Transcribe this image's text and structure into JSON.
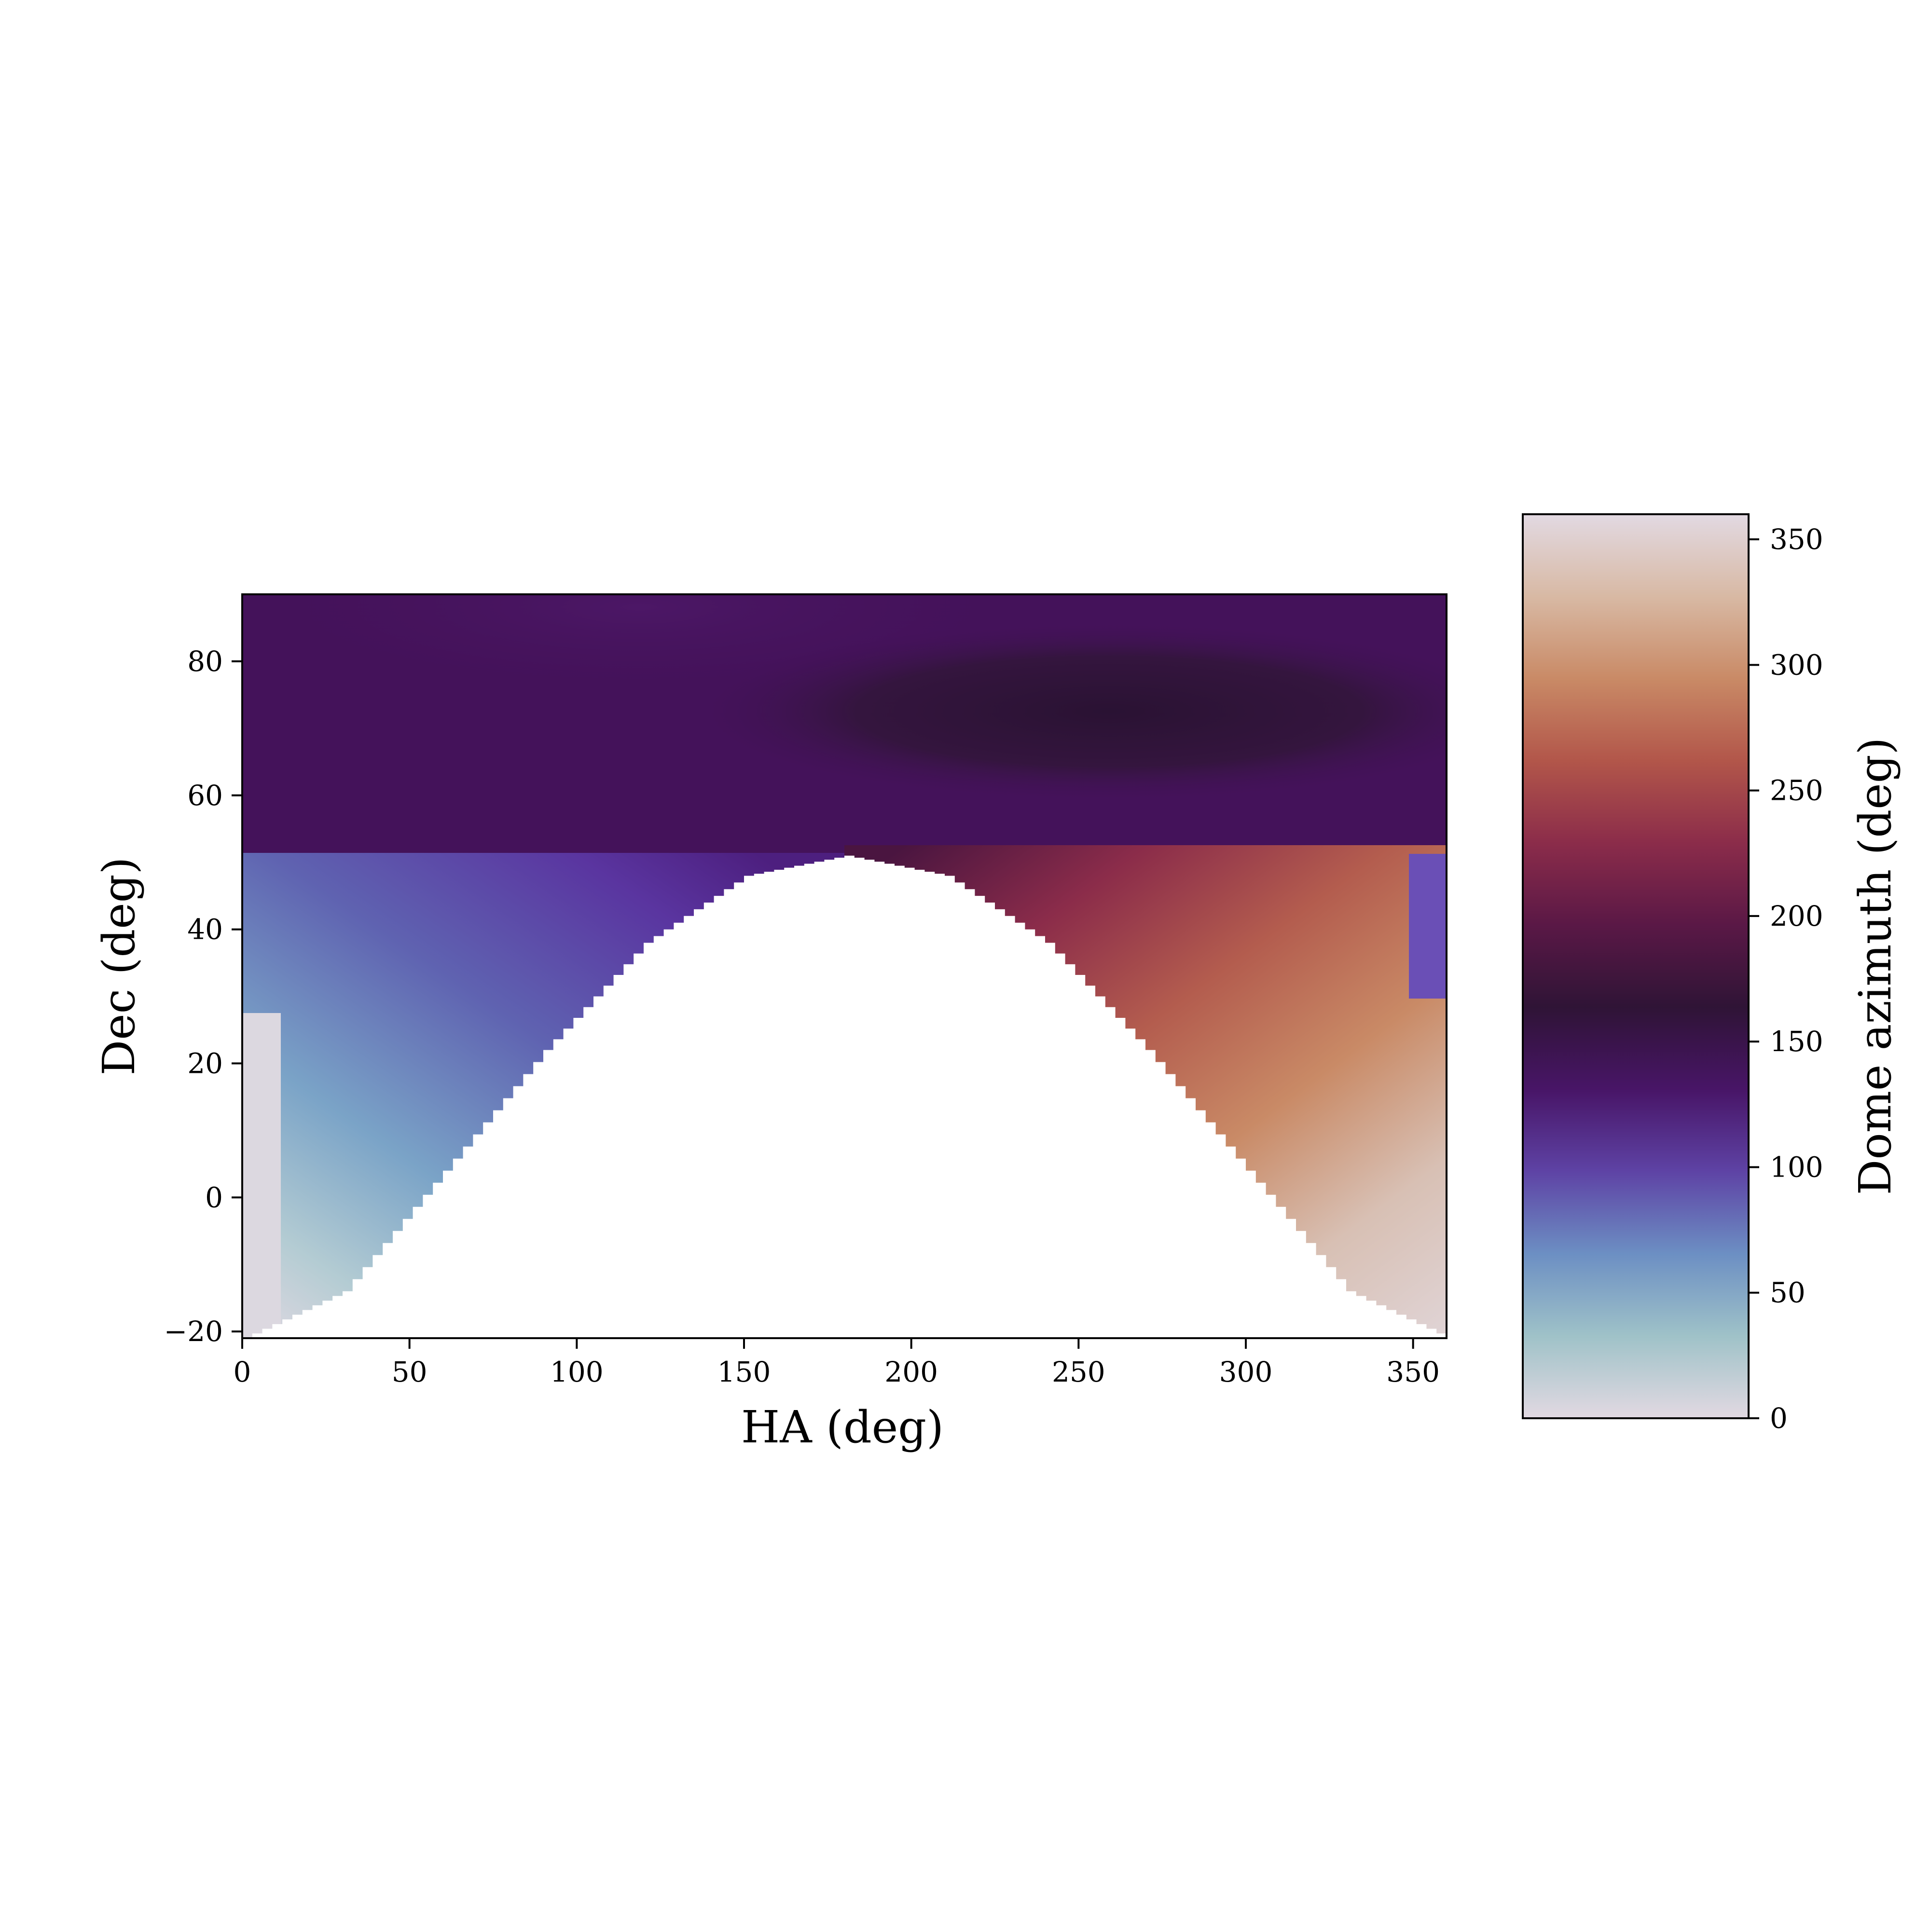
{
  "chart_data": {
    "type": "heatmap",
    "title": "",
    "xlabel": "HA (deg)",
    "ylabel": "Dec (deg)",
    "xlim": [
      0,
      360
    ],
    "ylim": [
      -21,
      90
    ],
    "xticks": [
      0,
      50,
      100,
      150,
      200,
      250,
      300,
      350
    ],
    "yticks": [
      -20,
      0,
      20,
      40,
      60,
      80
    ],
    "xtick_labels": [
      "0",
      "50",
      "100",
      "150",
      "200",
      "250",
      "300",
      "350"
    ],
    "ytick_labels": [
      "−20",
      "0",
      "20",
      "40",
      "60",
      "80"
    ],
    "colorbar": {
      "label": "Dome azimuth (deg)",
      "range": [
        0,
        360
      ],
      "ticks": [
        0,
        50,
        100,
        150,
        200,
        250,
        300,
        350
      ],
      "tick_labels": [
        "0",
        "50",
        "100",
        "150",
        "200",
        "250",
        "300",
        "350"
      ],
      "colormap": "twilight",
      "colormap_stops": [
        "#e2d9e2",
        "#9fc2c8",
        "#6c8fc3",
        "#5e43a5",
        "#481567",
        "#2f1436",
        "#5a1846",
        "#8b2c4a",
        "#b2564a",
        "#c98a66",
        "#d8b9a4",
        "#e2d9e2"
      ]
    },
    "masked_region": {
      "description_values": "no data below a horizon limit: Dec ≈ 51 at HA 180, falling to Dec ≈ -21 at HA 0 and 360",
      "limit_curve": [
        [
          0,
          -21
        ],
        [
          30,
          -14
        ],
        [
          60,
          4
        ],
        [
          90,
          22
        ],
        [
          120,
          38
        ],
        [
          150,
          48
        ],
        [
          180,
          51
        ],
        [
          210,
          48
        ],
        [
          240,
          38
        ],
        [
          270,
          22
        ],
        [
          300,
          4
        ],
        [
          330,
          -14
        ],
        [
          360,
          -21
        ]
      ]
    },
    "regions": [
      {
        "ha_range": [
          0,
          360
        ],
        "dec_range": [
          52,
          90
        ],
        "azimuth_approx": 150
      },
      {
        "ha_range": [
          0,
          120
        ],
        "dec_range": [
          -21,
          51
        ],
        "azimuth_approx": "0-130"
      },
      {
        "ha_range": [
          240,
          360
        ],
        "dec_range": [
          -21,
          51
        ],
        "azimuth_approx": "220-355"
      }
    ]
  }
}
